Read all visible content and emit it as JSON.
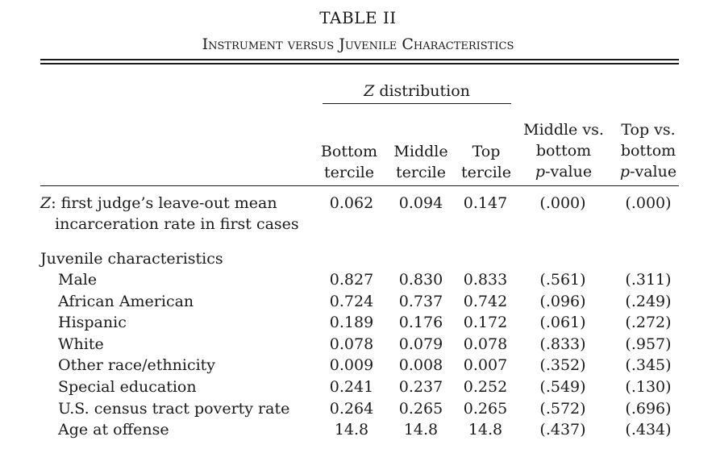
{
  "table": {
    "title": "TABLE II",
    "subtitle": "Instrument versus Juvenile Characteristics",
    "spanner": {
      "italic": "Z",
      "rest": " distribution"
    },
    "columns": [
      {
        "l1": "Bottom",
        "l2": "tercile"
      },
      {
        "l1": "Middle",
        "l2": "tercile"
      },
      {
        "l1": "Top",
        "l2": "tercile"
      },
      {
        "l0": "Middle vs.",
        "l1": "bottom",
        "l2_ital": "p",
        "l2_rest": "-value"
      },
      {
        "l0": "Top vs.",
        "l1": "bottom",
        "l2_ital": "p",
        "l2_rest": "-value"
      }
    ],
    "z_row": {
      "label_ital": "Z",
      "label_rest": ": first judge’s leave-out mean",
      "label_line2": "incarceration rate in first cases",
      "values": [
        "0.062",
        "0.094",
        "0.147",
        "(.000)",
        "(.000)"
      ]
    },
    "section_label": "Juvenile characteristics",
    "rows": [
      {
        "label": "Male",
        "values": [
          "0.827",
          "0.830",
          "0.833",
          "(.561)",
          "(.311)"
        ]
      },
      {
        "label": "African American",
        "values": [
          "0.724",
          "0.737",
          "0.742",
          "(.096)",
          "(.249)"
        ]
      },
      {
        "label": "Hispanic",
        "values": [
          "0.189",
          "0.176",
          "0.172",
          "(.061)",
          "(.272)"
        ]
      },
      {
        "label": "White",
        "values": [
          "0.078",
          "0.079",
          "0.078",
          "(.833)",
          "(.957)"
        ]
      },
      {
        "label": "Other race/ethnicity",
        "values": [
          "0.009",
          "0.008",
          "0.007",
          "(.352)",
          "(.345)"
        ]
      },
      {
        "label": "Special education",
        "values": [
          "0.241",
          "0.237",
          "0.252",
          "(.549)",
          "(.130)"
        ]
      },
      {
        "label": "U.S. census tract poverty rate",
        "values": [
          "0.264",
          "0.265",
          "0.265",
          "(.572)",
          "(.696)"
        ]
      },
      {
        "label": "Age at offense",
        "values": [
          "14.8",
          "14.8",
          "14.8",
          "(.437)",
          "(.434)"
        ]
      }
    ]
  }
}
